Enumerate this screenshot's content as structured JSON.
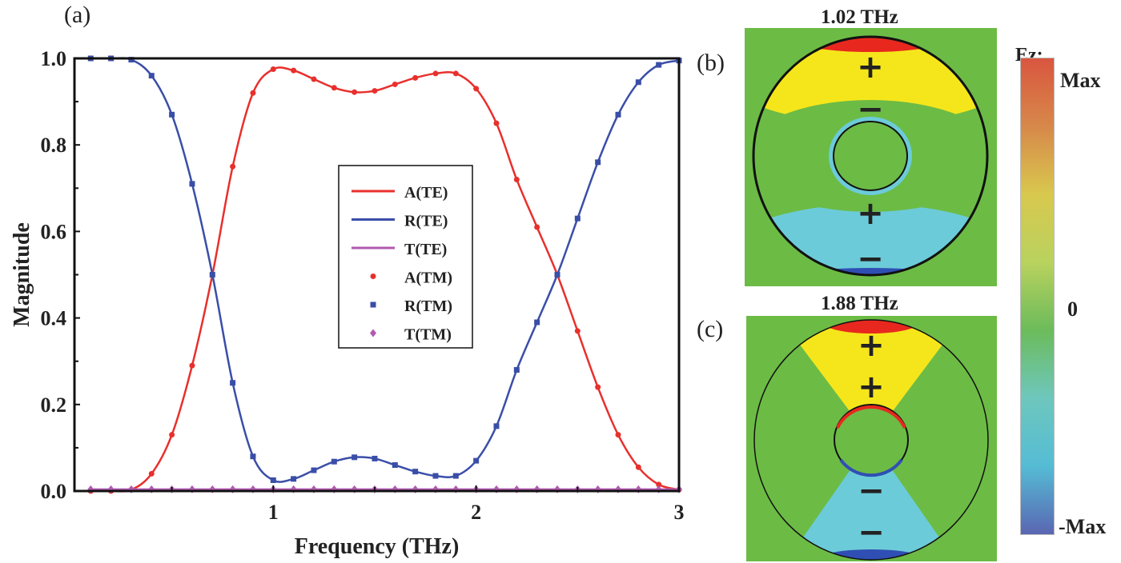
{
  "panels": {
    "a": "(a)",
    "b": "(b)",
    "c": "(c)"
  },
  "chart_data": {
    "type": "line",
    "xlabel": "Frequency (THz)",
    "ylabel": "Magnitude",
    "xlim": [
      0.02,
      3
    ],
    "ylim": [
      0,
      1
    ],
    "xticks": [
      "1",
      "2",
      "3"
    ],
    "yticks": [
      "0.0",
      "0.2",
      "0.4",
      "0.6",
      "0.8",
      "1.0"
    ],
    "legend_position": "center",
    "x": [
      0.1,
      0.2,
      0.3,
      0.4,
      0.5,
      0.6,
      0.7,
      0.8,
      0.9,
      1.0,
      1.1,
      1.2,
      1.3,
      1.4,
      1.5,
      1.6,
      1.7,
      1.8,
      1.9,
      2.0,
      2.1,
      2.2,
      2.3,
      2.4,
      2.5,
      2.6,
      2.7,
      2.8,
      2.9,
      3.0
    ],
    "series": [
      {
        "name": "A(TE)",
        "style": "line",
        "color": "#e8302c",
        "values": [
          0,
          0,
          0.003,
          0.04,
          0.13,
          0.29,
          0.5,
          0.75,
          0.92,
          0.975,
          0.972,
          0.952,
          0.932,
          0.922,
          0.925,
          0.94,
          0.955,
          0.965,
          0.965,
          0.93,
          0.85,
          0.72,
          0.61,
          0.5,
          0.37,
          0.24,
          0.13,
          0.055,
          0.015,
          0.003
        ]
      },
      {
        "name": "R(TE)",
        "style": "line",
        "color": "#3a4ea8",
        "values": [
          1,
          1,
          0.997,
          0.96,
          0.87,
          0.71,
          0.5,
          0.25,
          0.08,
          0.025,
          0.028,
          0.048,
          0.068,
          0.078,
          0.075,
          0.06,
          0.045,
          0.035,
          0.035,
          0.07,
          0.15,
          0.28,
          0.39,
          0.5,
          0.63,
          0.76,
          0.87,
          0.945,
          0.985,
          0.995
        ]
      },
      {
        "name": "T(TE)",
        "style": "line",
        "color": "#b05ab0",
        "values": [
          0.004,
          0.004,
          0.004,
          0.004,
          0.004,
          0.004,
          0.004,
          0.004,
          0.004,
          0.004,
          0.004,
          0.004,
          0.004,
          0.004,
          0.004,
          0.004,
          0.004,
          0.004,
          0.004,
          0.004,
          0.004,
          0.004,
          0.004,
          0.004,
          0.004,
          0.004,
          0.004,
          0.004,
          0.004,
          0.004
        ]
      },
      {
        "name": "A(TM)",
        "style": "circle",
        "color": "#e8302c",
        "ref": 0
      },
      {
        "name": "R(TM)",
        "style": "square",
        "color": "#3a4ea8",
        "ref": 1
      },
      {
        "name": "T(TM)",
        "style": "diamond",
        "color": "#b05ab0",
        "ref": 2
      }
    ]
  },
  "field_maps": [
    {
      "title": "1.02 THz",
      "signs": [
        "+",
        "−",
        "+",
        "−"
      ]
    },
    {
      "title": "1.88 THz",
      "signs": [
        "+",
        "+",
        "−",
        "−"
      ]
    }
  ],
  "colorbar": {
    "label": "Ez:",
    "max": "Max",
    "zero": "0",
    "min": "-Max",
    "colors": [
      "#d9563f",
      "#d7884a",
      "#d8c84e",
      "#b9d25e",
      "#6cbb5b",
      "#6ec7bd",
      "#55bcd5",
      "#5a66b2"
    ]
  }
}
